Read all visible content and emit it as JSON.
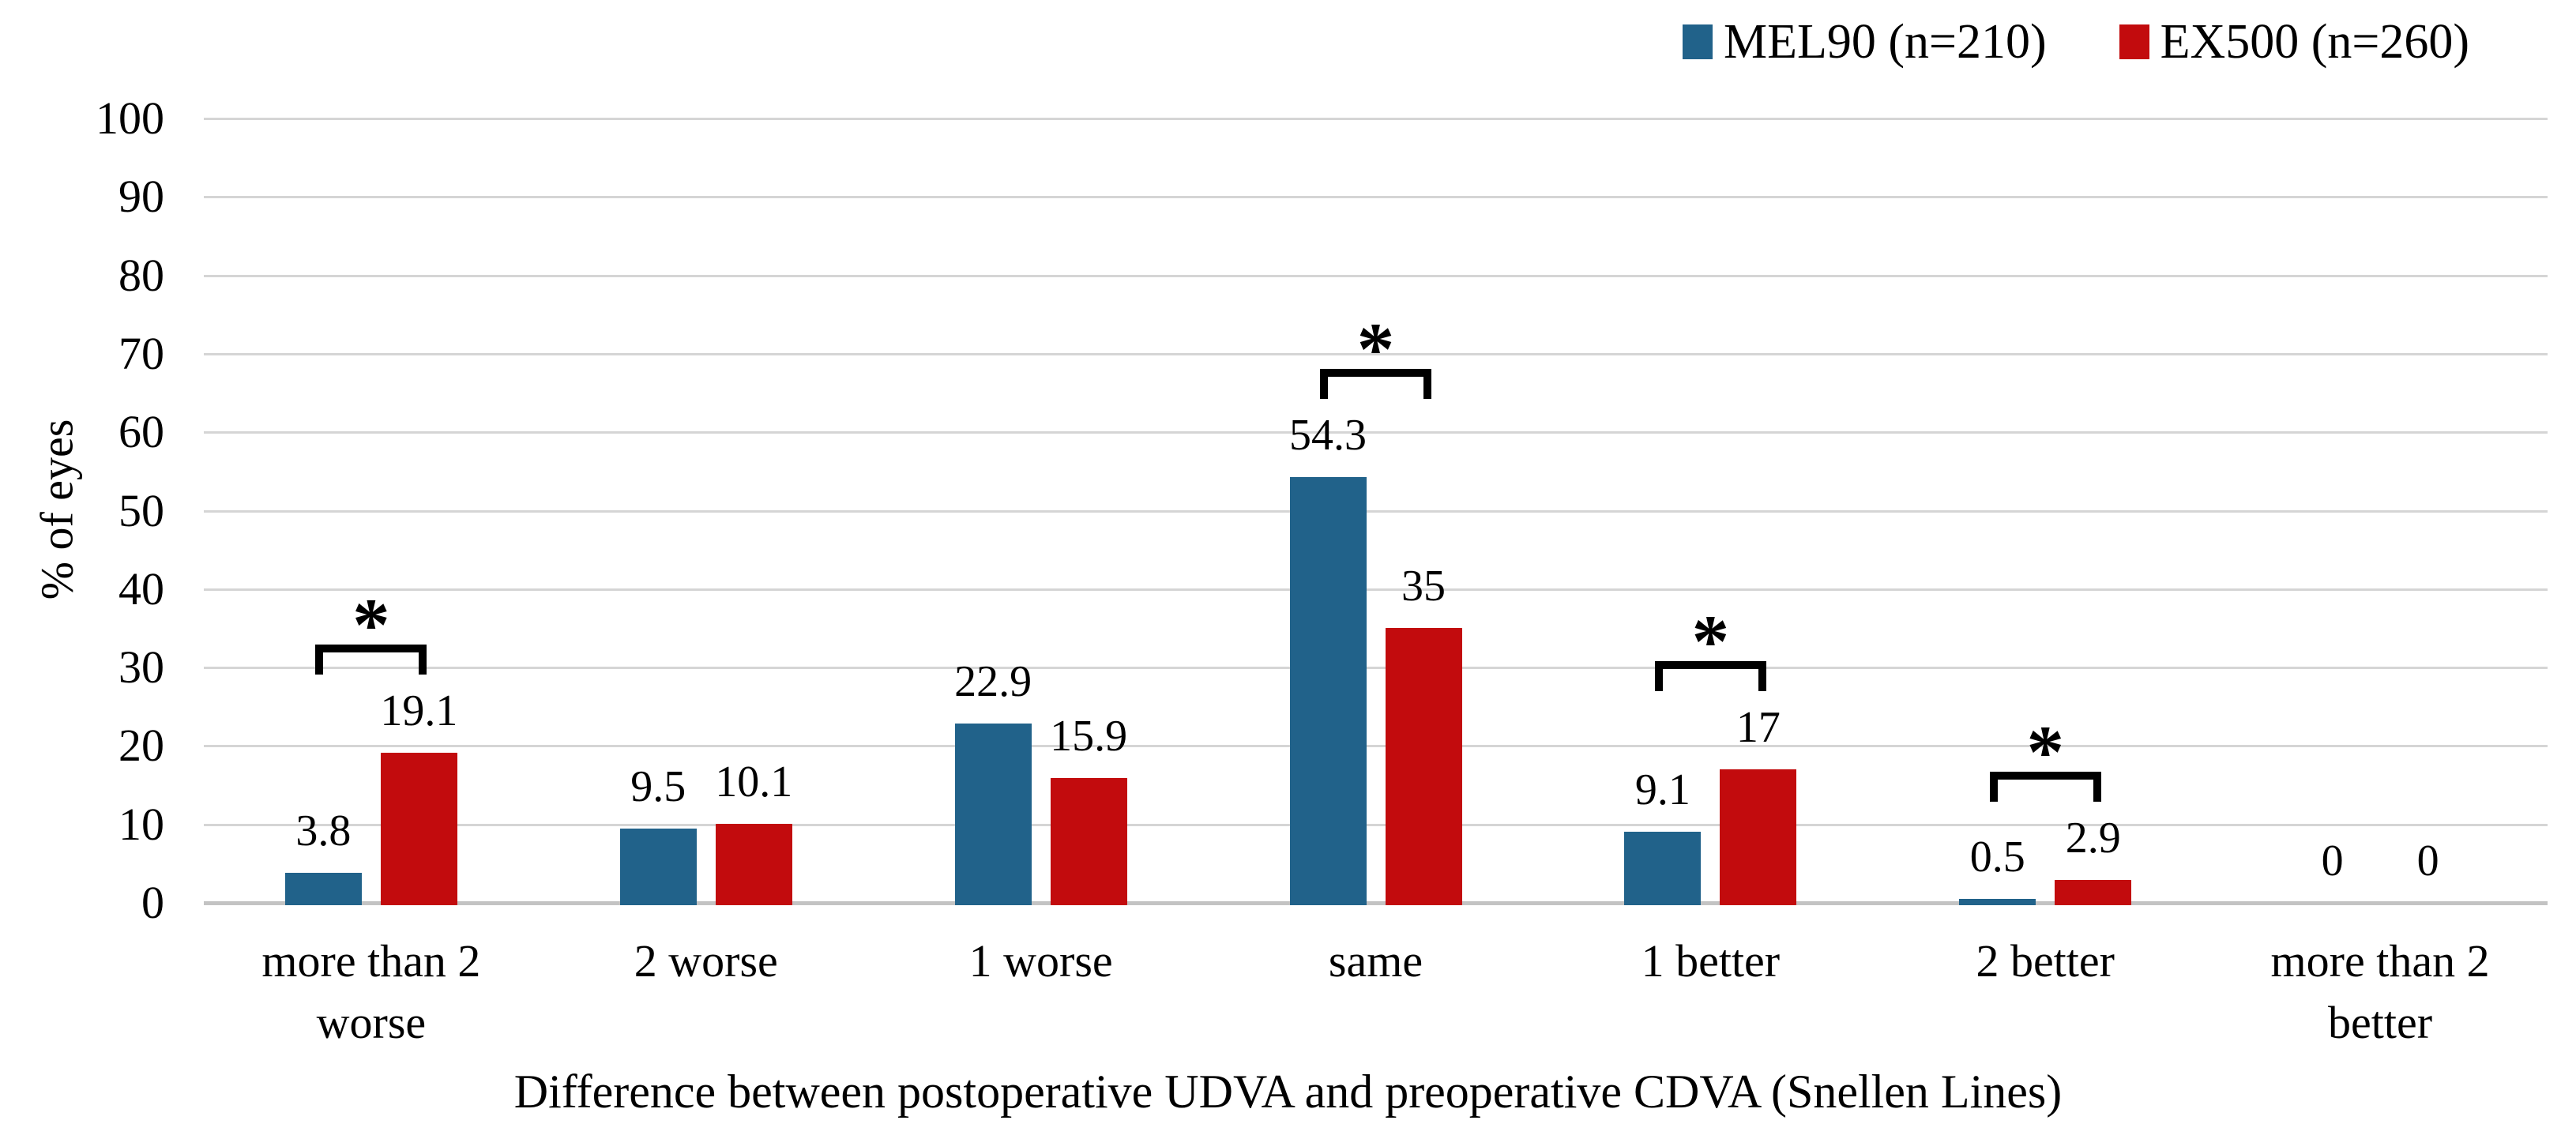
{
  "legend": {
    "items": [
      {
        "label": "MEL90 (n=210)",
        "color": "#21628a"
      },
      {
        "label": "EX500 (n=260)",
        "color": "#c20b0d"
      }
    ]
  },
  "y_axis": {
    "title": "% of eyes",
    "tick_labels": [
      "0",
      "10",
      "20",
      "30",
      "40",
      "50",
      "60",
      "70",
      "80",
      "90",
      "100"
    ]
  },
  "x_axis": {
    "title": "Difference between postoperative UDVA and preoperative CDVA (Snellen Lines)"
  },
  "chart_data": {
    "type": "bar",
    "title": "",
    "xlabel": "Difference between postoperative UDVA and preoperative CDVA (Snellen Lines)",
    "ylabel": "% of eyes",
    "ylim": [
      0,
      100
    ],
    "ytick_step": 10,
    "grid": true,
    "legend_position": "top-right",
    "categories": [
      "more than 2 worse",
      "2 worse",
      "1 worse",
      "same",
      "1 better",
      "2 better",
      "more than 2 better"
    ],
    "series": [
      {
        "name": "MEL90 (n=210)",
        "color": "#21628a",
        "values": [
          3.8,
          9.5,
          22.9,
          54.3,
          9.1,
          0.5,
          0
        ],
        "labels": [
          "3.8",
          "9.5",
          "22.9",
          "54.3",
          "9.1",
          "0.5",
          "0"
        ]
      },
      {
        "name": "EX500 (n=260)",
        "color": "#c20b0d",
        "values": [
          19.1,
          10.1,
          15.9,
          35,
          17,
          2.9,
          0
        ],
        "labels": [
          "19.1",
          "10.1",
          "15.9",
          "35",
          "17",
          "2.9",
          "0"
        ]
      }
    ],
    "significance": {
      "marker": "*",
      "categories": [
        "more than 2 worse",
        "same",
        "1 better",
        "2 better"
      ]
    }
  }
}
